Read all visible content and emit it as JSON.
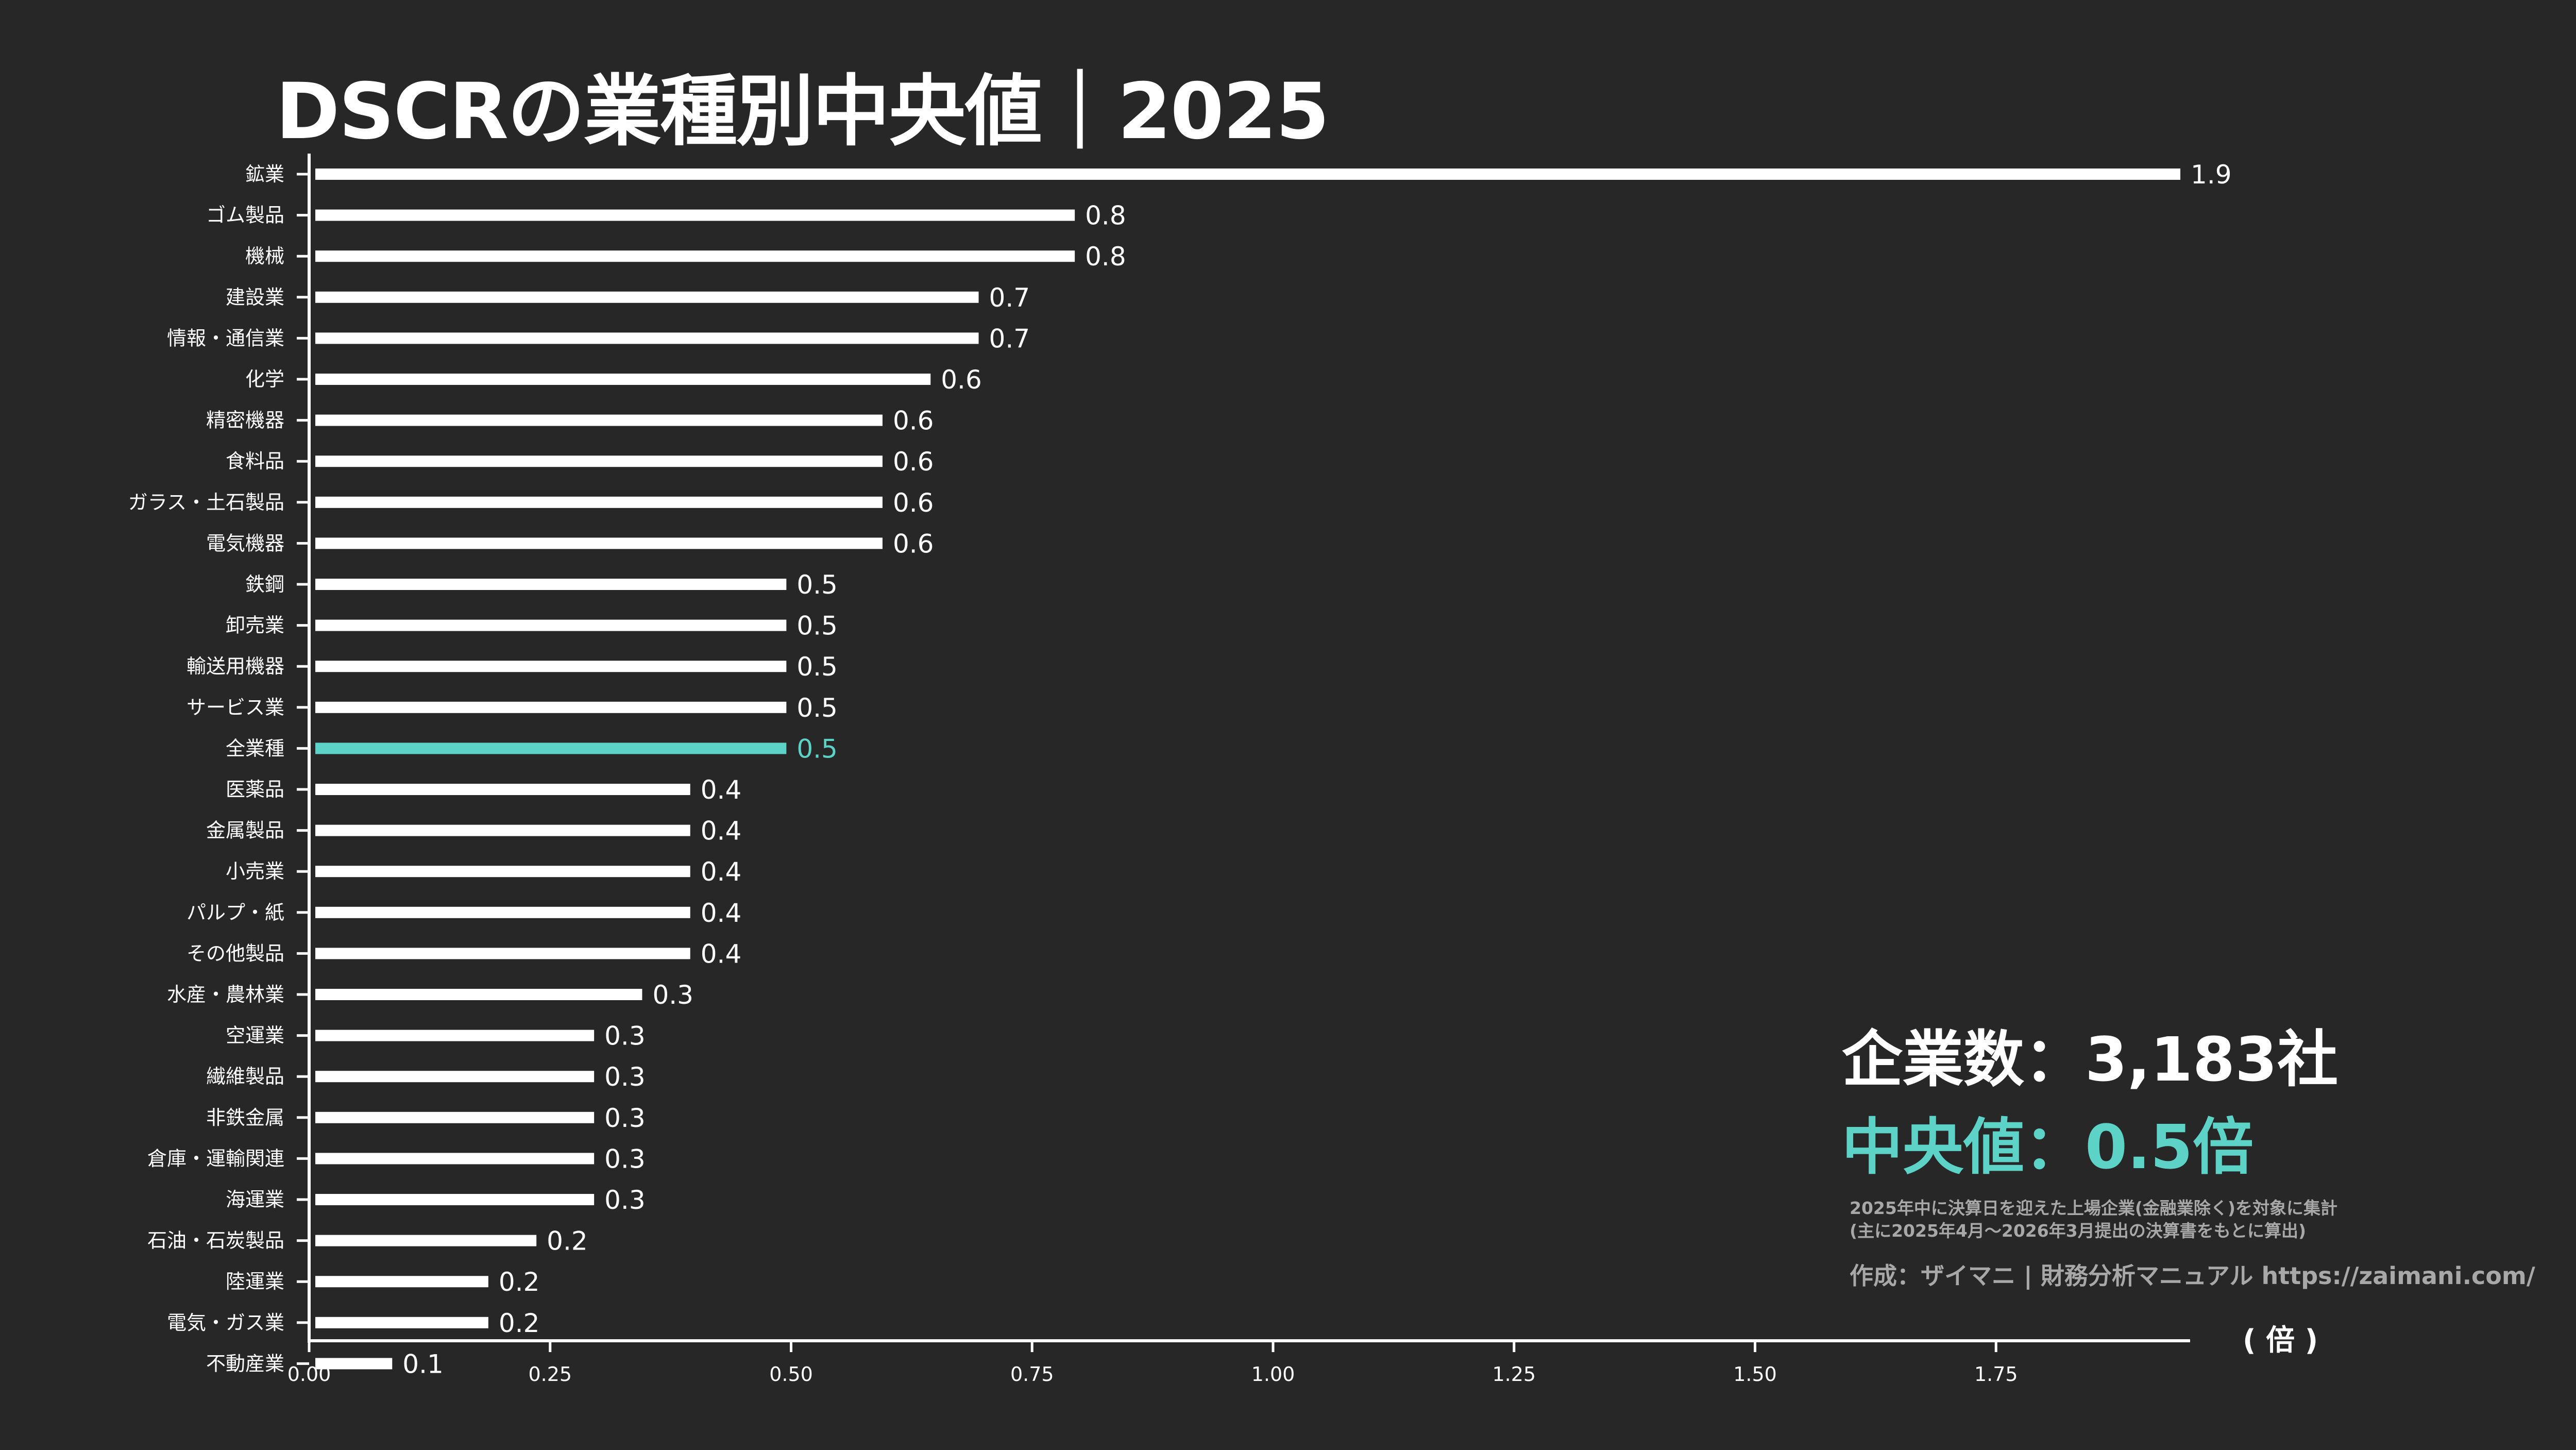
{
  "chart_data": {
    "type": "bar",
    "orientation": "horizontal",
    "title": "DSCRの業種別中央値｜2025",
    "xlabel": "( 倍 )",
    "ylabel": "",
    "xlim": [
      0,
      1.95
    ],
    "xticks": [
      "0.00",
      "0.25",
      "0.50",
      "0.75",
      "1.00",
      "1.25",
      "1.50",
      "1.75"
    ],
    "xtick_values": [
      0,
      0.25,
      0.5,
      0.75,
      1.0,
      1.25,
      1.5,
      1.75
    ],
    "grid": false,
    "categories": [
      "鉱業",
      "ゴム製品",
      "機械",
      "建設業",
      "情報・通信業",
      "化学",
      "精密機器",
      "食料品",
      "ガラス・土石製品",
      "電気機器",
      "鉄鋼",
      "卸売業",
      "輸送用機器",
      "サービス業",
      "全業種",
      "医薬品",
      "金属製品",
      "小売業",
      "パルプ・紙",
      "その他製品",
      "水産・農林業",
      "空運業",
      "繊維製品",
      "非鉄金属",
      "倉庫・運輸関連",
      "海運業",
      "石油・石炭製品",
      "陸運業",
      "電気・ガス業",
      "不動産業"
    ],
    "values": [
      1.94,
      0.79,
      0.79,
      0.69,
      0.69,
      0.64,
      0.59,
      0.59,
      0.59,
      0.59,
      0.49,
      0.49,
      0.49,
      0.49,
      0.49,
      0.39,
      0.39,
      0.39,
      0.39,
      0.39,
      0.34,
      0.29,
      0.29,
      0.29,
      0.29,
      0.29,
      0.23,
      0.18,
      0.18,
      0.08
    ],
    "data_labels": [
      "1.9",
      "0.8",
      "0.8",
      "0.7",
      "0.7",
      "0.6",
      "0.6",
      "0.6",
      "0.6",
      "0.6",
      "0.5",
      "0.5",
      "0.5",
      "0.5",
      "0.5",
      "0.4",
      "0.4",
      "0.4",
      "0.4",
      "0.4",
      "0.3",
      "0.3",
      "0.3",
      "0.3",
      "0.3",
      "0.3",
      "0.2",
      "0.2",
      "0.2",
      "0.1"
    ],
    "highlight_category": "全業種",
    "colors": {
      "bar": "#ffffff",
      "highlight": "#5dd3c8",
      "background": "#272727",
      "axis": "#ffffff"
    }
  },
  "stats": {
    "company_count": "企業数：3,183社",
    "median": "中央値：0.5倍"
  },
  "notes": {
    "line1": "2025年中に決算日を迎えた上場企業(金融業除く)を対象に集計",
    "line2": "(主に2025年4月～2026年3月提出の決算書をもとに算出)"
  },
  "credit": "作成：ザイマニ | 財務分析マニュアル https://zaimani.com/"
}
